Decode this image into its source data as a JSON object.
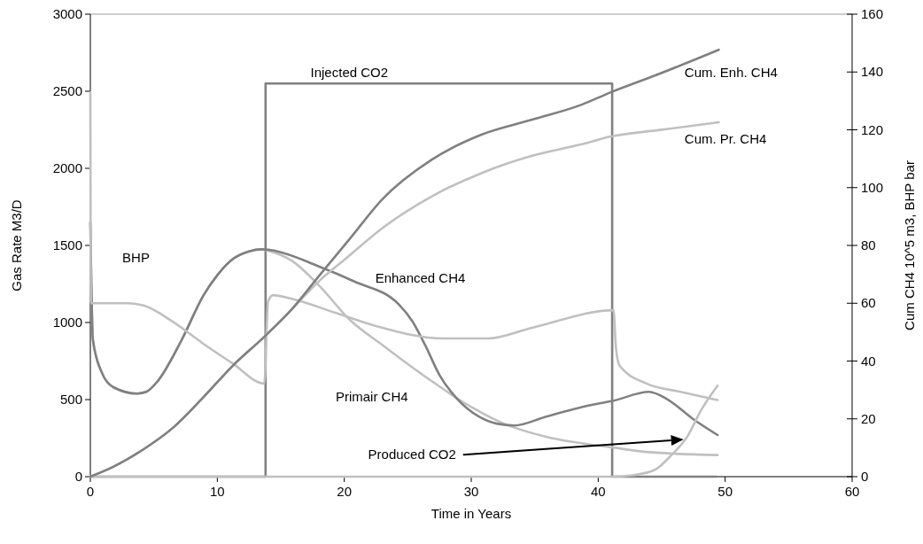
{
  "chart_data": {
    "type": "line",
    "xlabel": "Time in Years",
    "ylabel": "Gas Rate M3/D",
    "y2label": "Cum CH4 10^5 m3, BHP bar",
    "xlim": [
      0,
      60
    ],
    "xticks": [
      0,
      10,
      20,
      30,
      40,
      50,
      60
    ],
    "ylim": [
      0,
      3000
    ],
    "yticks": [
      0,
      500,
      1000,
      1500,
      2000,
      2500,
      3000
    ],
    "y2lim": [
      0,
      160
    ],
    "y2ticks": [
      0,
      20,
      40,
      60,
      80,
      100,
      120,
      140,
      160
    ],
    "grid": false,
    "marker": "none",
    "line_style": "solid",
    "series": [
      {
        "name": "Injected  CO2",
        "color": "#808080",
        "x": [
          0,
          13.8,
          13.8,
          41.1,
          41.1,
          49.3
        ],
        "values": [
          0,
          0,
          2550,
          2550,
          0,
          0
        ]
      },
      {
        "name": "Primair CH4",
        "color": "#c0c0c0",
        "x": [
          0,
          0.2,
          0.9,
          1.84,
          3.7,
          4.4,
          5.3,
          7.2,
          8.9,
          10,
          11.1,
          12.5,
          13.5,
          14.2,
          15.8,
          18.1,
          20.4,
          23.1,
          26.6,
          30.1,
          32.4,
          35.9,
          41.2,
          43.8,
          49.4
        ],
        "values": [
          1650,
          888,
          676,
          579,
          539,
          550,
          619,
          888,
          1175,
          1307,
          1404,
          1461,
          1475,
          1461,
          1404,
          1232,
          1020,
          848,
          636,
          447,
          350,
          258,
          189,
          160,
          140
        ]
      },
      {
        "name": "Enhanced CH4",
        "color": "#808080",
        "x": [
          0,
          0.2,
          0.9,
          1.84,
          3.7,
          4.4,
          5.3,
          7.2,
          8.9,
          10,
          11.1,
          12.5,
          13.5,
          14.2,
          18,
          20.8,
          24.3,
          25.4,
          26.4,
          27.5,
          28.9,
          30.6,
          32,
          33.4,
          35.9,
          39.4,
          41.2,
          44,
          45.4,
          47.5,
          49.4
        ],
        "values": [
          1650,
          888,
          676,
          579,
          539,
          550,
          619,
          888,
          1175,
          1307,
          1404,
          1461,
          1475,
          1470,
          1364,
          1266,
          1117,
          1003,
          848,
          659,
          504,
          390,
          344,
          332,
          390,
          464,
          493,
          550,
          504,
          372,
          270
        ]
      },
      {
        "name": "Produced CO2",
        "color": "#c0c0c0",
        "x": [
          0,
          41.2,
          42.8,
          44.5,
          45.8,
          47,
          48.1,
          49.4
        ],
        "values": [
          0,
          0,
          10,
          46,
          143,
          258,
          430,
          590
        ]
      },
      {
        "name": "BHP",
        "color": "#c0c0c0",
        "axis": "y2",
        "x": [
          0,
          0.05,
          3,
          4.2,
          6.5,
          8.8,
          11.2,
          13.7,
          14,
          14.4,
          15.8,
          19.3,
          22.5,
          27.8,
          31.3,
          34.8,
          41.2,
          41.4,
          41.7,
          43.8,
          46.4,
          49.4
        ],
        "values": [
          133,
          60,
          60,
          59.2,
          53.6,
          46.3,
          39.2,
          32.2,
          60.7,
          62.8,
          61.6,
          56.7,
          52.1,
          47.8,
          47.8,
          51.5,
          57.6,
          44.4,
          38.3,
          32.2,
          29.4,
          26.5
        ]
      },
      {
        "name": "Cum. Pr. CH4",
        "color": "#c0c0c0",
        "axis": "y2",
        "x": [
          0,
          1.8,
          4.2,
          6.5,
          8.8,
          11.2,
          13.7,
          15.8,
          18.1,
          20,
          23,
          26.9,
          30.8,
          34.8,
          38.7,
          41,
          44.6,
          49.5
        ],
        "values": [
          0,
          3.4,
          9.5,
          16.9,
          27,
          38.3,
          48.4,
          57.6,
          68,
          75,
          86,
          97,
          105,
          111,
          115,
          117.7,
          119.8,
          122.6
        ]
      },
      {
        "name": "Cum. Enh. CH4",
        "color": "#808080",
        "axis": "y2",
        "x": [
          0,
          1.8,
          4.2,
          6.5,
          8.8,
          11.2,
          13.7,
          15.8,
          18.1,
          20.4,
          23,
          26.9,
          30.8,
          34.8,
          38.7,
          41,
          44.6,
          49.5
        ],
        "values": [
          0,
          3.4,
          9.5,
          16.9,
          27,
          38.3,
          48.4,
          57.6,
          69.9,
          82.1,
          96,
          109.7,
          118.3,
          123.5,
          128.7,
          133,
          139,
          147.7
        ]
      }
    ]
  }
}
